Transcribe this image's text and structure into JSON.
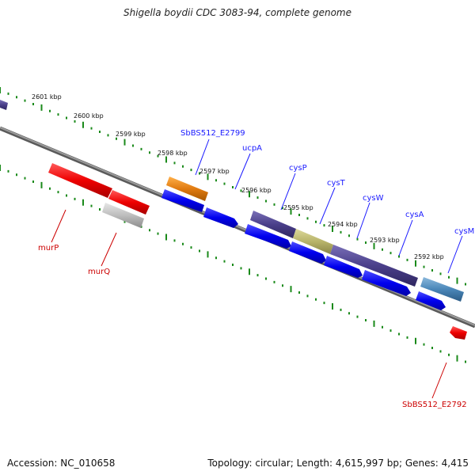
{
  "title": "Shigella boydii CDC 3083-94, complete genome",
  "footer": {
    "accession": "Accession: NC_010658",
    "summary": "Topology: circular; Length: 4,615,997 bp; Genes: 4,415"
  },
  "scale_labels": [
    "2601 kbp",
    "2600 kbp",
    "2599 kbp",
    "2598 kbp",
    "2597 kbp",
    "2596 kbp",
    "2595 kbp",
    "2594 kbp",
    "2593 kbp",
    "2592 kbp"
  ],
  "gene_labels": [
    {
      "text": "SbBS512_E2799",
      "color": "#1a1aff"
    },
    {
      "text": "ucpA",
      "color": "#1a1aff"
    },
    {
      "text": "cysP",
      "color": "#1a1aff"
    },
    {
      "text": "cysT",
      "color": "#1a1aff"
    },
    {
      "text": "cysW",
      "color": "#1a1aff"
    },
    {
      "text": "cysA",
      "color": "#1a1aff"
    },
    {
      "text": "cysM",
      "color": "#1a1aff"
    },
    {
      "text": "murP",
      "color": "#cc0000"
    },
    {
      "text": "murQ",
      "color": "#cc0000"
    },
    {
      "text": "SbBS512_E2792",
      "color": "#cc0000"
    }
  ],
  "colors": {
    "backbone": "#808080",
    "tick": "#1a8a1a",
    "forward_cds": "#0000ee",
    "reverse_cds": "#ee0000",
    "cog_purple": "#4a3f8a",
    "cog_olive": "#b8b46a",
    "cog_orange": "#e07a10",
    "cog_steel": "#4a86b8",
    "cog_gray": "#bdbdbd"
  }
}
